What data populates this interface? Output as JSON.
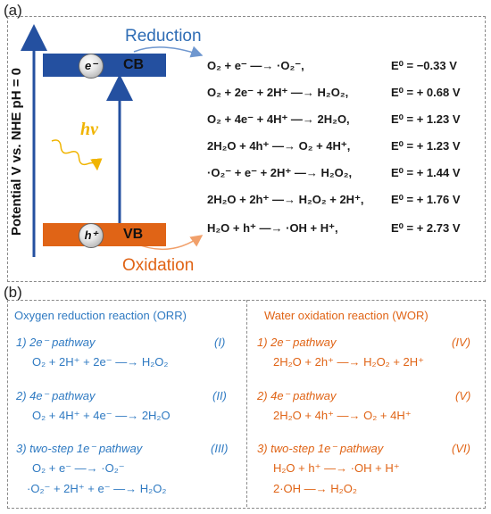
{
  "panel_a": {
    "label": "(a)",
    "y_axis_label": "Potential V vs. NHE pH = 0",
    "cb_label": "CB",
    "vb_label": "VB",
    "electron_symbol": "e⁻",
    "hole_symbol": "h⁺",
    "photon_label": "hν",
    "reduction_label": "Reduction",
    "oxidation_label": "Oxidation",
    "colors": {
      "cb": "#2450a0",
      "vb": "#e06416",
      "reduction": "#2f6db5",
      "oxidation": "#e06416",
      "photon": "#f0b400"
    },
    "reactions": [
      {
        "equation": "O₂ + e⁻ —→ ·O₂⁻,",
        "potential": "E⁰ = −0.33 V"
      },
      {
        "equation": "O₂ + 2e⁻ + 2H⁺ —→ H₂O₂,",
        "potential": "E⁰ = + 0.68 V"
      },
      {
        "equation": "O₂ + 4e⁻ + 4H⁺ —→ 2H₂O,",
        "potential": "E⁰ = + 1.23 V"
      },
      {
        "equation": "2H₂O + 4h⁺ —→ O₂ + 4H⁺,",
        "potential": "E⁰ = + 1.23 V"
      },
      {
        "equation": "·O₂⁻ + e⁻ + 2H⁺ —→ H₂O₂,",
        "potential": "E⁰ = + 1.44 V"
      },
      {
        "equation": "2H₂O + 2h⁺ —→ H₂O₂ + 2H⁺,",
        "potential": "E⁰ = + 1.76 V"
      },
      {
        "equation": "H₂O + h⁺ —→ ·OH + H⁺,",
        "potential": "E⁰ = + 2.73 V"
      }
    ]
  },
  "panel_b": {
    "label": "(b)",
    "orr": {
      "title": "Oxygen reduction reaction (ORR)",
      "pathways": [
        {
          "title": "1) 2e⁻ pathway",
          "roman": "(I)",
          "equations": [
            "O₂ + 2H⁺ + 2e⁻ —→ H₂O₂"
          ]
        },
        {
          "title": "2) 4e⁻ pathway",
          "roman": "(II)",
          "equations": [
            "O₂ + 4H⁺ + 4e⁻ —→ 2H₂O"
          ]
        },
        {
          "title": "3) two-step 1e⁻ pathway",
          "roman": "(III)",
          "equations": [
            "O₂ + e⁻ —→ ·O₂⁻",
            "·O₂⁻ + 2H⁺ + e⁻ —→ H₂O₂"
          ]
        }
      ]
    },
    "wor": {
      "title": "Water oxidation reaction (WOR)",
      "pathways": [
        {
          "title": "1) 2e⁻ pathway",
          "roman": "(IV)",
          "equations": [
            "2H₂O + 2h⁺ —→ H₂O₂ + 2H⁺"
          ]
        },
        {
          "title": "2) 4e⁻ pathway",
          "roman": "(V)",
          "equations": [
            "2H₂O + 4h⁺ —→ O₂ + 4H⁺"
          ]
        },
        {
          "title": "3) two-step 1e⁻ pathway",
          "roman": "(VI)",
          "equations": [
            "H₂O + h⁺ —→ ·OH + H⁺",
            "2·OH —→ H₂O₂"
          ]
        }
      ]
    }
  }
}
